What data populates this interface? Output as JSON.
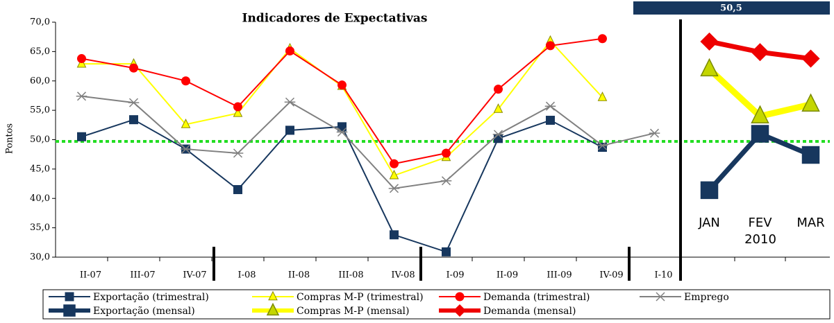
{
  "chart_data": [
    {
      "type": "line",
      "title": "Indicadores de Expectativas",
      "y_label": "Pontos",
      "categories": [
        "II-07",
        "III-07",
        "IV-07",
        "I-08",
        "II-08",
        "III-08",
        "IV-08",
        "I-09",
        "II-09",
        "III-09",
        "IV-09",
        "I-10"
      ],
      "ylim": [
        30,
        70
      ],
      "yticks": [
        {
          "value": 30,
          "label": "30,0"
        },
        {
          "value": 35,
          "label": "35,0"
        },
        {
          "value": 40,
          "label": "40,0"
        },
        {
          "value": 45,
          "label": "45,0"
        },
        {
          "value": 50,
          "label": "50,0"
        },
        {
          "value": 55,
          "label": "55,0"
        },
        {
          "value": 60,
          "label": "60,0"
        },
        {
          "value": 65,
          "label": "65,0"
        },
        {
          "value": 70,
          "label": "70,0"
        }
      ],
      "reference_line": {
        "value": 49.7,
        "color": "#22dd22"
      },
      "series": [
        {
          "name": "Exportação (trimestral)",
          "color": "#17375e",
          "marker": "square",
          "values": [
            50.5,
            53.4,
            48.4,
            41.5,
            51.6,
            52.2,
            33.8,
            30.9,
            50.2,
            53.3,
            48.7,
            null
          ]
        },
        {
          "name": "Compras M-P (trimestral)",
          "color": "#ffff00",
          "marker": "triangle",
          "values": [
            62.9,
            62.9,
            52.6,
            54.5,
            65.5,
            59.1,
            43.9,
            47.0,
            55.2,
            66.8,
            57.2,
            null
          ]
        },
        {
          "name": "Demanda (trimestral)",
          "color": "#ff0000",
          "marker": "circle",
          "values": [
            63.8,
            62.2,
            60.0,
            55.6,
            65.1,
            59.3,
            45.9,
            47.7,
            58.6,
            66.0,
            67.2,
            null
          ]
        },
        {
          "name": "Emprego",
          "color": "#808080",
          "marker": "asterisk",
          "values": [
            57.4,
            56.3,
            48.4,
            47.7,
            56.4,
            51.3,
            41.7,
            43.0,
            50.9,
            55.7,
            49.0,
            51.1
          ]
        }
      ]
    },
    {
      "type": "line",
      "annotation": "50,5",
      "x_label": "2010",
      "categories": [
        "JAN",
        "FEV",
        "MAR"
      ],
      "ylim": [
        30,
        70
      ],
      "reference_line": {
        "value": 49.7,
        "color": "#22dd22"
      },
      "series": [
        {
          "name": "Exportação (mensal)",
          "color": "#17375e",
          "marker": "square",
          "values": [
            41.4,
            51.0,
            47.4
          ]
        },
        {
          "name": "Compras M-P (mensal)",
          "color": "#ffff00",
          "marker": "triangle",
          "values": [
            62.0,
            54.0,
            56.0
          ]
        },
        {
          "name": "Demanda (mensal)",
          "color": "#ee0000",
          "marker": "diamond",
          "values": [
            66.7,
            64.9,
            63.8
          ]
        }
      ]
    }
  ]
}
